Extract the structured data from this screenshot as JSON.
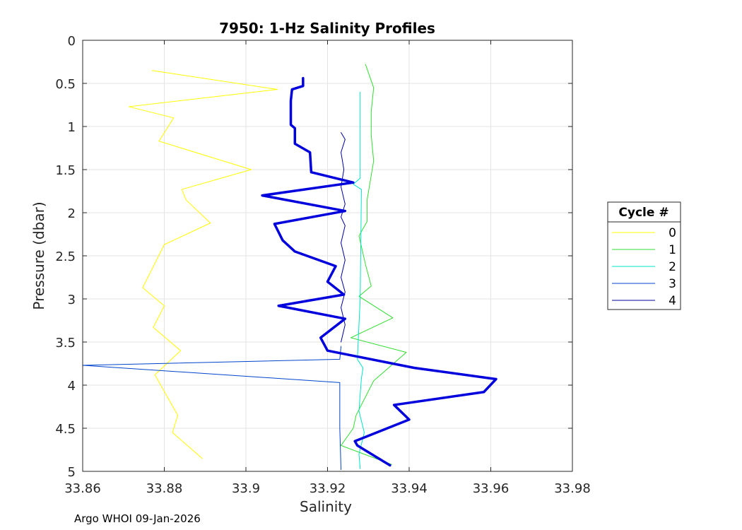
{
  "footer": "Argo WHOI 09-Jan-2026",
  "chart_data": {
    "type": "line",
    "title": "7950: 1-Hz Salinity Profiles",
    "xlabel": "Salinity",
    "ylabel": "Pressure (dbar)",
    "xlim": [
      33.86,
      33.98
    ],
    "ylim": [
      0,
      5
    ],
    "y_reversed": true,
    "x_ticks": [
      33.86,
      33.88,
      33.9,
      33.92,
      33.94,
      33.96,
      33.98
    ],
    "x_tick_labels": [
      "33.86",
      "33.88",
      "33.9",
      "33.92",
      "33.94",
      "33.96",
      "33.98"
    ],
    "y_ticks": [
      0,
      0.5,
      1,
      1.5,
      2,
      2.5,
      3,
      3.5,
      4,
      4.5,
      5
    ],
    "y_tick_labels": [
      "0",
      "0.5",
      "1",
      "1.5",
      "2",
      "2.5",
      "3",
      "3.5",
      "4",
      "4.5",
      "5"
    ],
    "grid": true,
    "legend_title": "Cycle #",
    "legend_position": "right",
    "series": [
      {
        "name": "0",
        "color": "#ffff00",
        "width": 1,
        "points": [
          [
            33.877,
            0.35
          ],
          [
            33.9077,
            0.57
          ],
          [
            33.8713,
            0.77
          ],
          [
            33.8823,
            0.9
          ],
          [
            33.8787,
            1.17
          ],
          [
            33.9013,
            1.5
          ],
          [
            33.8843,
            1.73
          ],
          [
            33.8853,
            1.85
          ],
          [
            33.8913,
            2.12
          ],
          [
            33.88,
            2.37
          ],
          [
            33.8747,
            2.87
          ],
          [
            33.88,
            3.08
          ],
          [
            33.8773,
            3.33
          ],
          [
            33.884,
            3.6
          ],
          [
            33.8777,
            3.88
          ],
          [
            33.8833,
            4.35
          ],
          [
            33.882,
            4.55
          ],
          [
            33.8893,
            4.85
          ]
        ]
      },
      {
        "name": "1",
        "color": "#33dd33",
        "width": 1,
        "points": [
          [
            33.9293,
            0.28
          ],
          [
            33.9313,
            0.55
          ],
          [
            33.9307,
            0.83
          ],
          [
            33.9307,
            1.1
          ],
          [
            33.9313,
            1.4
          ],
          [
            33.9297,
            1.85
          ],
          [
            33.9297,
            2.1
          ],
          [
            33.9277,
            2.27
          ],
          [
            33.9293,
            2.6
          ],
          [
            33.9307,
            2.85
          ],
          [
            33.9277,
            2.97
          ],
          [
            33.936,
            3.22
          ],
          [
            33.9257,
            3.45
          ],
          [
            33.9393,
            3.62
          ],
          [
            33.9313,
            3.95
          ],
          [
            33.927,
            4.35
          ],
          [
            33.9263,
            4.5
          ],
          [
            33.9233,
            4.7
          ],
          [
            33.9357,
            4.92
          ]
        ]
      },
      {
        "name": "2",
        "color": "#00e5c8",
        "width": 1,
        "points": [
          [
            33.928,
            0.6
          ],
          [
            33.928,
            1.6
          ],
          [
            33.9263,
            1.67
          ],
          [
            33.9283,
            1.73
          ],
          [
            33.928,
            3.0
          ],
          [
            33.9273,
            3.7
          ],
          [
            33.9287,
            3.8
          ],
          [
            33.9283,
            3.92
          ],
          [
            33.9277,
            4.3
          ],
          [
            33.929,
            4.55
          ],
          [
            33.9277,
            4.8
          ],
          [
            33.928,
            4.97
          ]
        ]
      },
      {
        "name": "3",
        "color": "#0044cc",
        "width": 1,
        "points": [
          [
            33.9233,
            3.55
          ],
          [
            33.923,
            3.7
          ],
          [
            33.86,
            3.77
          ],
          [
            33.923,
            3.97
          ],
          [
            33.923,
            4.5
          ],
          [
            33.9233,
            4.98
          ]
        ]
      },
      {
        "name": "4",
        "color": "#000099",
        "width": 1,
        "points": [
          [
            33.9233,
            1.07
          ],
          [
            33.9243,
            1.15
          ],
          [
            33.9233,
            1.3
          ],
          [
            33.924,
            1.5
          ],
          [
            33.9233,
            1.7
          ],
          [
            33.9243,
            1.9
          ],
          [
            33.9233,
            2.05
          ],
          [
            33.9243,
            2.15
          ],
          [
            33.9233,
            2.35
          ],
          [
            33.9243,
            2.55
          ],
          [
            33.9233,
            2.75
          ],
          [
            33.9243,
            2.92
          ],
          [
            33.9233,
            3.1
          ],
          [
            33.9243,
            3.3
          ],
          [
            33.9233,
            3.5
          ]
        ]
      },
      {
        "color": "#0000dd",
        "width": 3.5,
        "points": [
          [
            33.914,
            0.44
          ],
          [
            33.914,
            0.53
          ],
          [
            33.9113,
            0.57
          ],
          [
            33.911,
            0.7
          ],
          [
            33.911,
            0.98
          ],
          [
            33.912,
            1.02
          ],
          [
            33.912,
            1.2
          ],
          [
            33.9157,
            1.3
          ],
          [
            33.916,
            1.53
          ],
          [
            33.9263,
            1.65
          ],
          [
            33.904,
            1.8
          ],
          [
            33.9243,
            1.98
          ],
          [
            33.907,
            2.13
          ],
          [
            33.909,
            2.32
          ],
          [
            33.912,
            2.45
          ],
          [
            33.922,
            2.62
          ],
          [
            33.92,
            2.8
          ],
          [
            33.924,
            2.95
          ],
          [
            33.908,
            3.08
          ],
          [
            33.9243,
            3.23
          ],
          [
            33.9183,
            3.45
          ],
          [
            33.92,
            3.6
          ],
          [
            33.9413,
            3.8
          ],
          [
            33.9613,
            3.93
          ],
          [
            33.9583,
            4.08
          ],
          [
            33.9363,
            4.23
          ],
          [
            33.94,
            4.4
          ],
          [
            33.9267,
            4.65
          ],
          [
            33.9273,
            4.7
          ],
          [
            33.9353,
            4.93
          ]
        ]
      }
    ]
  }
}
